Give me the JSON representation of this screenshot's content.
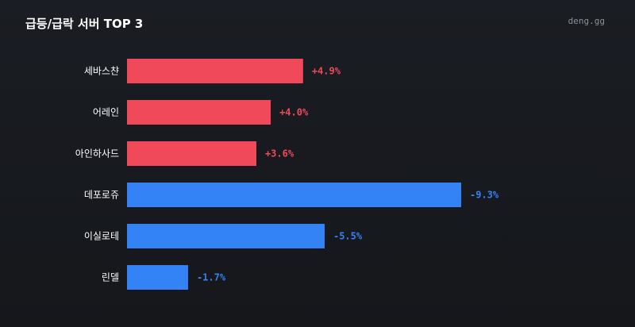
{
  "header": {
    "title": "급등/급락 서버 TOP 3",
    "brand": "deng.gg"
  },
  "colors": {
    "rise": "#f04a5a",
    "fall": "#3382f6"
  },
  "chart_data": {
    "type": "bar",
    "orientation": "horizontal",
    "title": "급등/급락 서버 TOP 3",
    "categories": [
      "세바스챤",
      "어레인",
      "아인하사드",
      "데포로쥬",
      "이실로테",
      "린델"
    ],
    "values": [
      4.9,
      4.0,
      3.6,
      -9.3,
      -5.5,
      -1.7
    ],
    "value_labels": [
      "+4.9%",
      "+4.0%",
      "+3.6%",
      "-9.3%",
      "-5.5%",
      "-1.7%"
    ],
    "unit": "%",
    "grid": false,
    "legend": "none"
  }
}
